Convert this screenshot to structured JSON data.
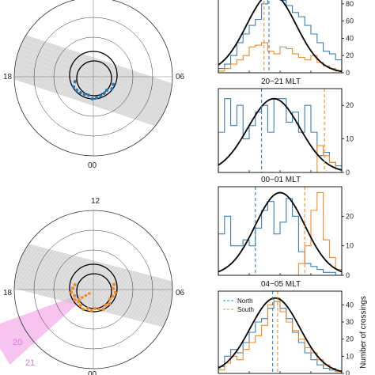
{
  "polar_plots": [
    {
      "labels": {
        "left": "18",
        "right": "06",
        "bottom": "00",
        "top": ""
      },
      "band_color": "#c8c8c8",
      "point_color": "#2a78b5",
      "sector": null
    },
    {
      "labels": {
        "left": "18",
        "right": "06",
        "bottom": "00",
        "top": "12"
      },
      "band_color": "#c8c8c8",
      "point_color": "#f08a24",
      "sector": {
        "color": "#f6b8ec",
        "labels": [
          "20",
          "21"
        ],
        "label_color": "#dd77dd"
      }
    }
  ],
  "colors": {
    "north": "#3a7fb5",
    "south": "#f08a24",
    "fit": "#000000"
  },
  "chart_data": [
    {
      "type": "bar",
      "title": "",
      "ylim": [
        0,
        90
      ],
      "yticks": [
        0,
        20,
        40,
        60,
        80
      ],
      "bins": 20,
      "north": [
        5,
        10,
        20,
        35,
        45,
        55,
        62,
        80,
        88,
        90,
        84,
        78,
        70,
        65,
        55,
        45,
        35,
        25,
        22,
        15
      ],
      "south": [
        2,
        5,
        10,
        15,
        20,
        30,
        32,
        35,
        25,
        22,
        30,
        28,
        22,
        18,
        15,
        20,
        12,
        8,
        5,
        2
      ],
      "north_line": 0.41,
      "south_line": 0.37,
      "fit_peak": 92,
      "fit_center": 0.43,
      "fit_sigma": 0.2
    },
    {
      "type": "bar",
      "title": "20−21 MLT",
      "ylim": [
        0,
        25
      ],
      "yticks": [
        0,
        10,
        20
      ],
      "bins": 20,
      "north": [
        12,
        22,
        14,
        20,
        10,
        14,
        18,
        20,
        12,
        22,
        22,
        15,
        18,
        12,
        20,
        12,
        5,
        6,
        3,
        2
      ],
      "south": [
        0,
        0,
        0,
        0,
        0,
        0,
        0,
        0,
        0,
        0,
        0,
        0,
        0,
        0,
        0,
        0,
        8,
        5,
        3,
        1
      ],
      "north_line": 0.35,
      "south_line": 0.86,
      "fit_peak": 22,
      "fit_center": 0.45,
      "fit_sigma": 0.21
    },
    {
      "type": "bar",
      "title": "00−01 MLT",
      "ylim": [
        0,
        30
      ],
      "yticks": [
        0,
        10,
        20
      ],
      "bins": 20,
      "north": [
        14,
        20,
        10,
        10,
        12,
        10,
        16,
        22,
        25,
        14,
        18,
        26,
        20,
        8,
        4,
        3,
        2,
        1,
        1,
        0
      ],
      "south": [
        0,
        0,
        0,
        0,
        0,
        0,
        0,
        0,
        0,
        0,
        0,
        0,
        0,
        4,
        10,
        22,
        28,
        12,
        6,
        2
      ],
      "north_line": 0.3,
      "south_line": 0.7,
      "fit_peak": 28,
      "fit_center": 0.5,
      "fit_sigma": 0.2
    },
    {
      "type": "bar",
      "title": "04−05 MLT",
      "ylim": [
        0,
        48
      ],
      "yticks": [
        0,
        10,
        20,
        30,
        40
      ],
      "ylabel": "Number of crossings",
      "bins": 20,
      "north": [
        4,
        10,
        14,
        12,
        18,
        24,
        30,
        32,
        38,
        42,
        38,
        32,
        24,
        18,
        12,
        8,
        5,
        3,
        2,
        1
      ],
      "south": [
        2,
        6,
        10,
        8,
        14,
        18,
        22,
        28,
        40,
        44,
        36,
        30,
        25,
        20,
        15,
        12,
        8,
        5,
        3,
        1
      ],
      "north_line": 0.44,
      "south_line": 0.48,
      "fit_peak": 44,
      "fit_center": 0.46,
      "fit_sigma": 0.2,
      "legend": {
        "north": "North",
        "south": "South"
      }
    }
  ]
}
